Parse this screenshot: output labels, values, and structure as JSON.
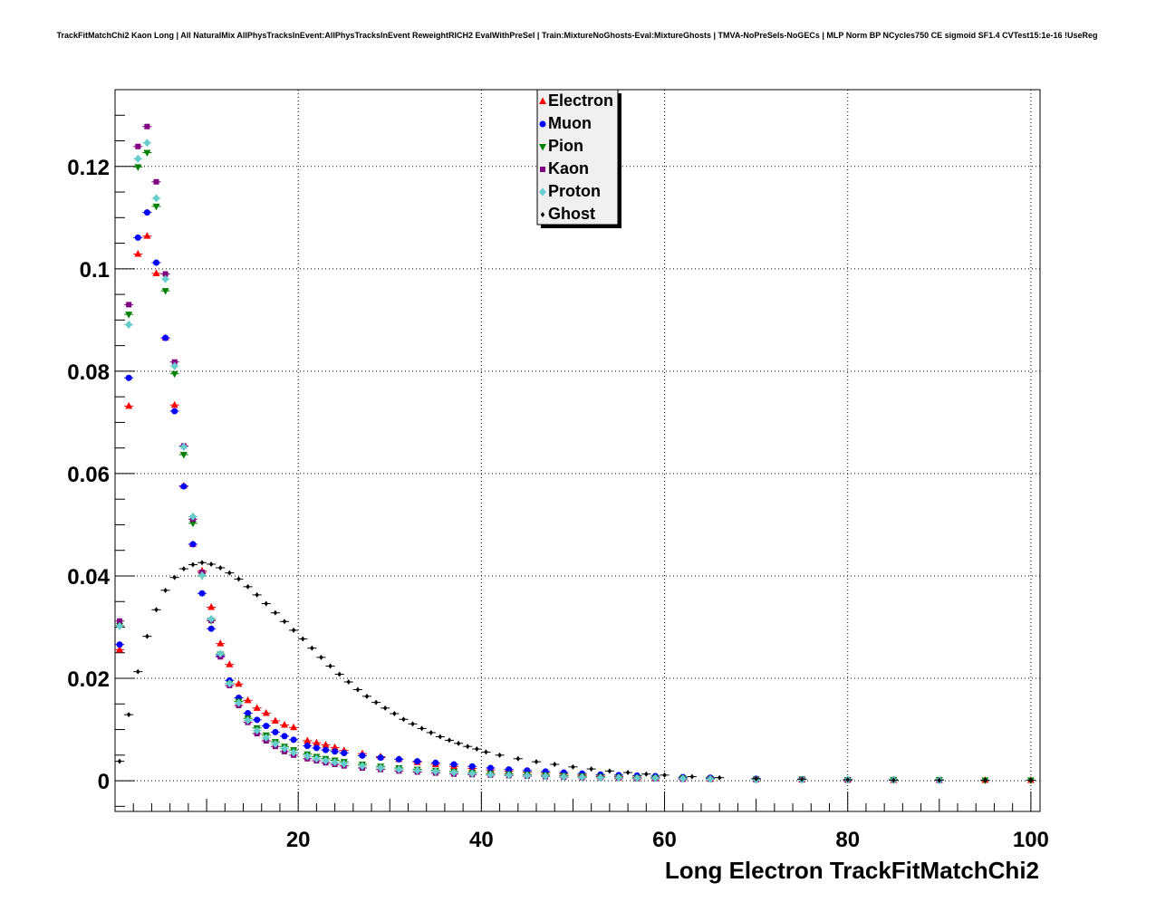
{
  "chart_data": {
    "type": "scatter",
    "title": "TrackFitMatchChi2 Kaon Long | All NaturalMix AllPhysTracksInEvent:AllPhysTracksInEvent ReweightRICH2 EvalWithPreSel | Train:MixtureNoGhosts-Eval:MixtureGhosts | TMVA-NoPreSels-NoGECs | MLP Norm BP NCycles750 CE sigmoid SF1.4 CVTest15:1e-16 !UseReg",
    "xlabel": "Long Electron TrackFitMatchChi2",
    "ylabel": "",
    "xlim": [
      0,
      101
    ],
    "ylim": [
      -0.006,
      0.135
    ],
    "xticks": [
      20,
      40,
      60,
      80,
      100
    ],
    "yticks": [
      0,
      0.02,
      0.04,
      0.06,
      0.08,
      0.1,
      0.12
    ],
    "ytick_labels": [
      "0",
      "0.02",
      "0.04",
      "0.06",
      "0.08",
      "0.1",
      "0.12"
    ],
    "grid": true,
    "legend_position": "top-center",
    "series": [
      {
        "name": "Electron",
        "color": "#ff0000",
        "marker": "triangle-up",
        "max_x": 100,
        "x": [
          0.5,
          1.5,
          2.5,
          3.5,
          4.5,
          5.5,
          6.5,
          7.5,
          8.5,
          9.5,
          10.5,
          11.5,
          12.5,
          13.5,
          14.5,
          15.5,
          16.5,
          17.5,
          18.5,
          19.5,
          21,
          22,
          23,
          24,
          25,
          27,
          29,
          31,
          33,
          35,
          37,
          39,
          41,
          43,
          45,
          47,
          49,
          51,
          53,
          55,
          57,
          59,
          62,
          65,
          70,
          75,
          80,
          85,
          90,
          95,
          100
        ],
        "y": [
          0.0256,
          0.0732,
          0.1029,
          0.1064,
          0.0991,
          0.0865,
          0.0734,
          0.0576,
          0.0462,
          0.041,
          0.0339,
          0.0268,
          0.0227,
          0.0189,
          0.0157,
          0.0142,
          0.0132,
          0.0117,
          0.0109,
          0.0104,
          0.0078,
          0.0074,
          0.007,
          0.0065,
          0.0059,
          0.0053,
          0.0047,
          0.0042,
          0.0036,
          0.0032,
          0.0028,
          0.0024,
          0.0021,
          0.0019,
          0.0017,
          0.0015,
          0.0013,
          0.0011,
          0.0009,
          0.0008,
          0.0007,
          0.0006,
          0.0005,
          0.0004,
          0.0003,
          0.0002,
          0.0002,
          0.0001,
          0.0001,
          0.0001,
          0.0001
        ]
      },
      {
        "name": "Muon",
        "color": "#0000ff",
        "marker": "circle",
        "max_x": 90,
        "x": [
          0.5,
          1.5,
          2.5,
          3.5,
          4.5,
          5.5,
          6.5,
          7.5,
          8.5,
          9.5,
          10.5,
          11.5,
          12.5,
          13.5,
          14.5,
          15.5,
          16.5,
          17.5,
          18.5,
          19.5,
          21,
          22,
          23,
          24,
          25,
          27,
          29,
          31,
          33,
          35,
          37,
          39,
          41,
          43,
          45,
          47,
          49,
          51,
          53,
          55,
          57,
          59,
          62,
          65,
          70,
          75,
          80,
          85,
          90
        ],
        "y": [
          0.0266,
          0.0787,
          0.1061,
          0.111,
          0.1012,
          0.0865,
          0.0722,
          0.0575,
          0.0462,
          0.0366,
          0.0297,
          0.0244,
          0.0196,
          0.0162,
          0.0132,
          0.0119,
          0.0107,
          0.0095,
          0.0087,
          0.008,
          0.0068,
          0.0064,
          0.006,
          0.0057,
          0.0054,
          0.0049,
          0.0045,
          0.0042,
          0.0038,
          0.0035,
          0.0032,
          0.0028,
          0.0025,
          0.0022,
          0.002,
          0.0018,
          0.0016,
          0.0014,
          0.0012,
          0.0011,
          0.001,
          0.0009,
          0.0007,
          0.0006,
          0.0004,
          0.0003,
          0.0002,
          0.0002,
          0.0001
        ]
      },
      {
        "name": "Pion",
        "color": "#008000",
        "marker": "triangle-down",
        "max_x": 100,
        "x": [
          0.5,
          1.5,
          2.5,
          3.5,
          4.5,
          5.5,
          6.5,
          7.5,
          8.5,
          9.5,
          10.5,
          11.5,
          12.5,
          13.5,
          14.5,
          15.5,
          16.5,
          17.5,
          18.5,
          19.5,
          21,
          22,
          23,
          24,
          25,
          27,
          29,
          31,
          33,
          35,
          37,
          39,
          41,
          43,
          45,
          47,
          49,
          51,
          53,
          55,
          57,
          59,
          62,
          65,
          70,
          75,
          80,
          85,
          90,
          95,
          100
        ],
        "y": [
          0.0303,
          0.0911,
          0.1199,
          0.1227,
          0.1122,
          0.0957,
          0.0795,
          0.0637,
          0.0503,
          0.04,
          0.0313,
          0.0247,
          0.019,
          0.0155,
          0.0122,
          0.0103,
          0.0089,
          0.0076,
          0.0067,
          0.006,
          0.0052,
          0.0047,
          0.0043,
          0.004,
          0.0037,
          0.0032,
          0.0028,
          0.0025,
          0.0022,
          0.002,
          0.0018,
          0.0016,
          0.0014,
          0.0013,
          0.0012,
          0.0011,
          0.001,
          0.0009,
          0.0008,
          0.0007,
          0.0006,
          0.0006,
          0.0005,
          0.0004,
          0.0003,
          0.0003,
          0.0002,
          0.0002,
          0.0002,
          0.0001,
          0.0001
        ]
      },
      {
        "name": "Kaon",
        "color": "#800080",
        "marker": "square",
        "max_x": 80,
        "x": [
          0.5,
          1.5,
          2.5,
          3.5,
          4.5,
          5.5,
          6.5,
          7.5,
          8.5,
          9.5,
          10.5,
          11.5,
          12.5,
          13.5,
          14.5,
          15.5,
          16.5,
          17.5,
          18.5,
          19.5,
          21,
          22,
          23,
          24,
          25,
          27,
          29,
          31,
          33,
          35,
          37,
          39,
          41,
          43,
          45,
          47,
          49,
          51,
          53,
          55,
          57,
          59,
          62,
          65,
          70,
          75,
          80
        ],
        "y": [
          0.0312,
          0.093,
          0.1239,
          0.1278,
          0.117,
          0.099,
          0.0818,
          0.0654,
          0.0511,
          0.0407,
          0.0313,
          0.0242,
          0.0186,
          0.0147,
          0.0114,
          0.0092,
          0.0078,
          0.0067,
          0.0057,
          0.005,
          0.0043,
          0.0039,
          0.0035,
          0.0032,
          0.0029,
          0.0025,
          0.0022,
          0.0019,
          0.0017,
          0.0015,
          0.0013,
          0.0012,
          0.0011,
          0.001,
          0.0009,
          0.0008,
          0.0007,
          0.0006,
          0.0006,
          0.0005,
          0.0004,
          0.0004,
          0.0003,
          0.0003,
          0.0002,
          0.0002,
          0.0001
        ]
      },
      {
        "name": "Proton",
        "color": "#66cccc",
        "marker": "diamond",
        "max_x": 90,
        "x": [
          0.5,
          1.5,
          2.5,
          3.5,
          4.5,
          5.5,
          6.5,
          7.5,
          8.5,
          9.5,
          10.5,
          11.5,
          12.5,
          13.5,
          14.5,
          15.5,
          16.5,
          17.5,
          18.5,
          19.5,
          21,
          22,
          23,
          24,
          25,
          27,
          29,
          31,
          33,
          35,
          37,
          39,
          41,
          43,
          45,
          47,
          49,
          51,
          53,
          55,
          57,
          59,
          62,
          65,
          70,
          75,
          80,
          85,
          90
        ],
        "y": [
          0.0302,
          0.0891,
          0.1215,
          0.1246,
          0.1138,
          0.098,
          0.081,
          0.0652,
          0.0516,
          0.0401,
          0.0316,
          0.0248,
          0.019,
          0.0152,
          0.0118,
          0.0098,
          0.0084,
          0.0072,
          0.0063,
          0.0055,
          0.0048,
          0.0043,
          0.0039,
          0.0036,
          0.0033,
          0.0029,
          0.0025,
          0.0022,
          0.002,
          0.0018,
          0.0016,
          0.0014,
          0.0012,
          0.0011,
          0.001,
          0.0009,
          0.0008,
          0.0007,
          0.0006,
          0.0006,
          0.0005,
          0.0005,
          0.0004,
          0.0003,
          0.0002,
          0.0002,
          0.0002,
          0.0001,
          0.0001
        ]
      },
      {
        "name": "Ghost",
        "color": "#000000",
        "marker": "small-diamond",
        "max_x": 100,
        "x": [
          0.5,
          1.5,
          2.5,
          3.5,
          4.5,
          5.5,
          6.5,
          7.5,
          8.5,
          9.5,
          10.5,
          11.5,
          12.5,
          13.5,
          14.5,
          15.5,
          16.5,
          17.5,
          18.5,
          19.5,
          20.5,
          21.5,
          22.5,
          23.5,
          24.5,
          25.5,
          26.5,
          27.5,
          28.5,
          29.5,
          30.5,
          31.5,
          32.5,
          33.5,
          34.5,
          35.5,
          36.5,
          37.5,
          38.5,
          39.5,
          40.5,
          42,
          44,
          46,
          48,
          50,
          52,
          54,
          56,
          58,
          60,
          63,
          66,
          70,
          75,
          80,
          85,
          90,
          95,
          100
        ],
        "y": [
          0.0038,
          0.0129,
          0.0213,
          0.0282,
          0.0334,
          0.0372,
          0.0397,
          0.0414,
          0.0422,
          0.0426,
          0.0423,
          0.0416,
          0.0406,
          0.0394,
          0.0379,
          0.0363,
          0.0346,
          0.0328,
          0.0311,
          0.0294,
          0.0277,
          0.0259,
          0.0241,
          0.0224,
          0.0208,
          0.0193,
          0.0178,
          0.0165,
          0.0153,
          0.0142,
          0.0131,
          0.012,
          0.0111,
          0.0102,
          0.0094,
          0.0086,
          0.0079,
          0.0073,
          0.0067,
          0.0062,
          0.0056,
          0.005,
          0.0043,
          0.0037,
          0.0032,
          0.0027,
          0.0023,
          0.0019,
          0.0016,
          0.0013,
          0.0011,
          0.0008,
          0.0006,
          0.0004,
          0.0003,
          0.0002,
          0.0001,
          0.0001,
          0.0001,
          0.0001
        ]
      }
    ]
  }
}
